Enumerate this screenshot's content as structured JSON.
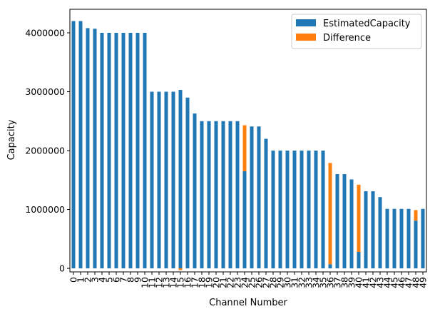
{
  "chart_data": {
    "type": "bar",
    "stacked": true,
    "title": "",
    "xlabel": "Channel Number",
    "ylabel": "Capacity",
    "ylim": [
      -60000,
      4400000
    ],
    "yticks": [
      0,
      1000000,
      2000000,
      3000000,
      4000000
    ],
    "ytick_labels": [
      "0",
      "1000000",
      "2000000",
      "3000000",
      "4000000"
    ],
    "legend_position": "top-right",
    "categories": [
      "0",
      "1",
      "2",
      "3",
      "4",
      "5",
      "6",
      "7",
      "8",
      "9",
      "10",
      "11",
      "12",
      "13",
      "14",
      "15",
      "16",
      "17",
      "18",
      "19",
      "20",
      "21",
      "22",
      "23",
      "24",
      "25",
      "26",
      "27",
      "28",
      "29",
      "30",
      "31",
      "32",
      "33",
      "34",
      "35",
      "36",
      "37",
      "38",
      "39",
      "40",
      "41",
      "42",
      "43",
      "44",
      "45",
      "46",
      "47",
      "48",
      "49"
    ],
    "series": [
      {
        "name": "EstimatedCapacity",
        "color": "#1f77b4",
        "values": [
          4200000,
          4200000,
          4080000,
          4070000,
          4000000,
          4000000,
          4000000,
          4000000,
          4000000,
          4000000,
          4000000,
          3000000,
          3000000,
          3000000,
          3000000,
          3030000,
          2900000,
          2630000,
          2500000,
          2500000,
          2500000,
          2500000,
          2500000,
          2500000,
          1650000,
          2410000,
          2410000,
          2200000,
          2000000,
          2000000,
          2000000,
          2000000,
          2000000,
          2000000,
          2000000,
          2000000,
          70000,
          1600000,
          1600000,
          1510000,
          280000,
          1310000,
          1310000,
          1210000,
          1010000,
          1010000,
          1010000,
          1010000,
          810000,
          1010000
        ]
      },
      {
        "name": "Difference",
        "color": "#ff7f0e",
        "values": [
          0,
          0,
          0,
          0,
          0,
          0,
          0,
          0,
          0,
          0,
          0,
          0,
          0,
          0,
          0,
          -30000,
          0,
          0,
          0,
          0,
          0,
          0,
          0,
          0,
          780000,
          0,
          0,
          0,
          0,
          0,
          0,
          0,
          0,
          0,
          0,
          0,
          1720000,
          0,
          0,
          0,
          1140000,
          0,
          0,
          0,
          0,
          0,
          0,
          0,
          180000,
          0
        ]
      }
    ]
  }
}
